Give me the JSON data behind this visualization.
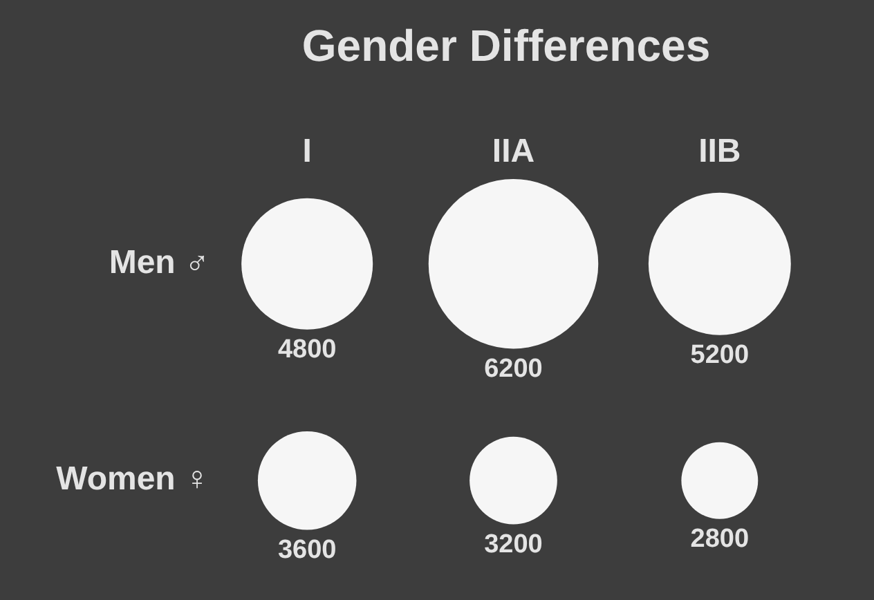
{
  "chart_data": {
    "type": "other",
    "title": "Gender Differences",
    "categories": [
      "I",
      "IIA",
      "IIB"
    ],
    "series": [
      {
        "name": "Men ♂",
        "color": "#f6f6f6",
        "values": [
          4800,
          6200,
          5200
        ]
      },
      {
        "name": "Women ♀",
        "color": "#f6f6f6",
        "values": [
          3600,
          3200,
          2800
        ]
      }
    ],
    "data_labels": true
  }
}
